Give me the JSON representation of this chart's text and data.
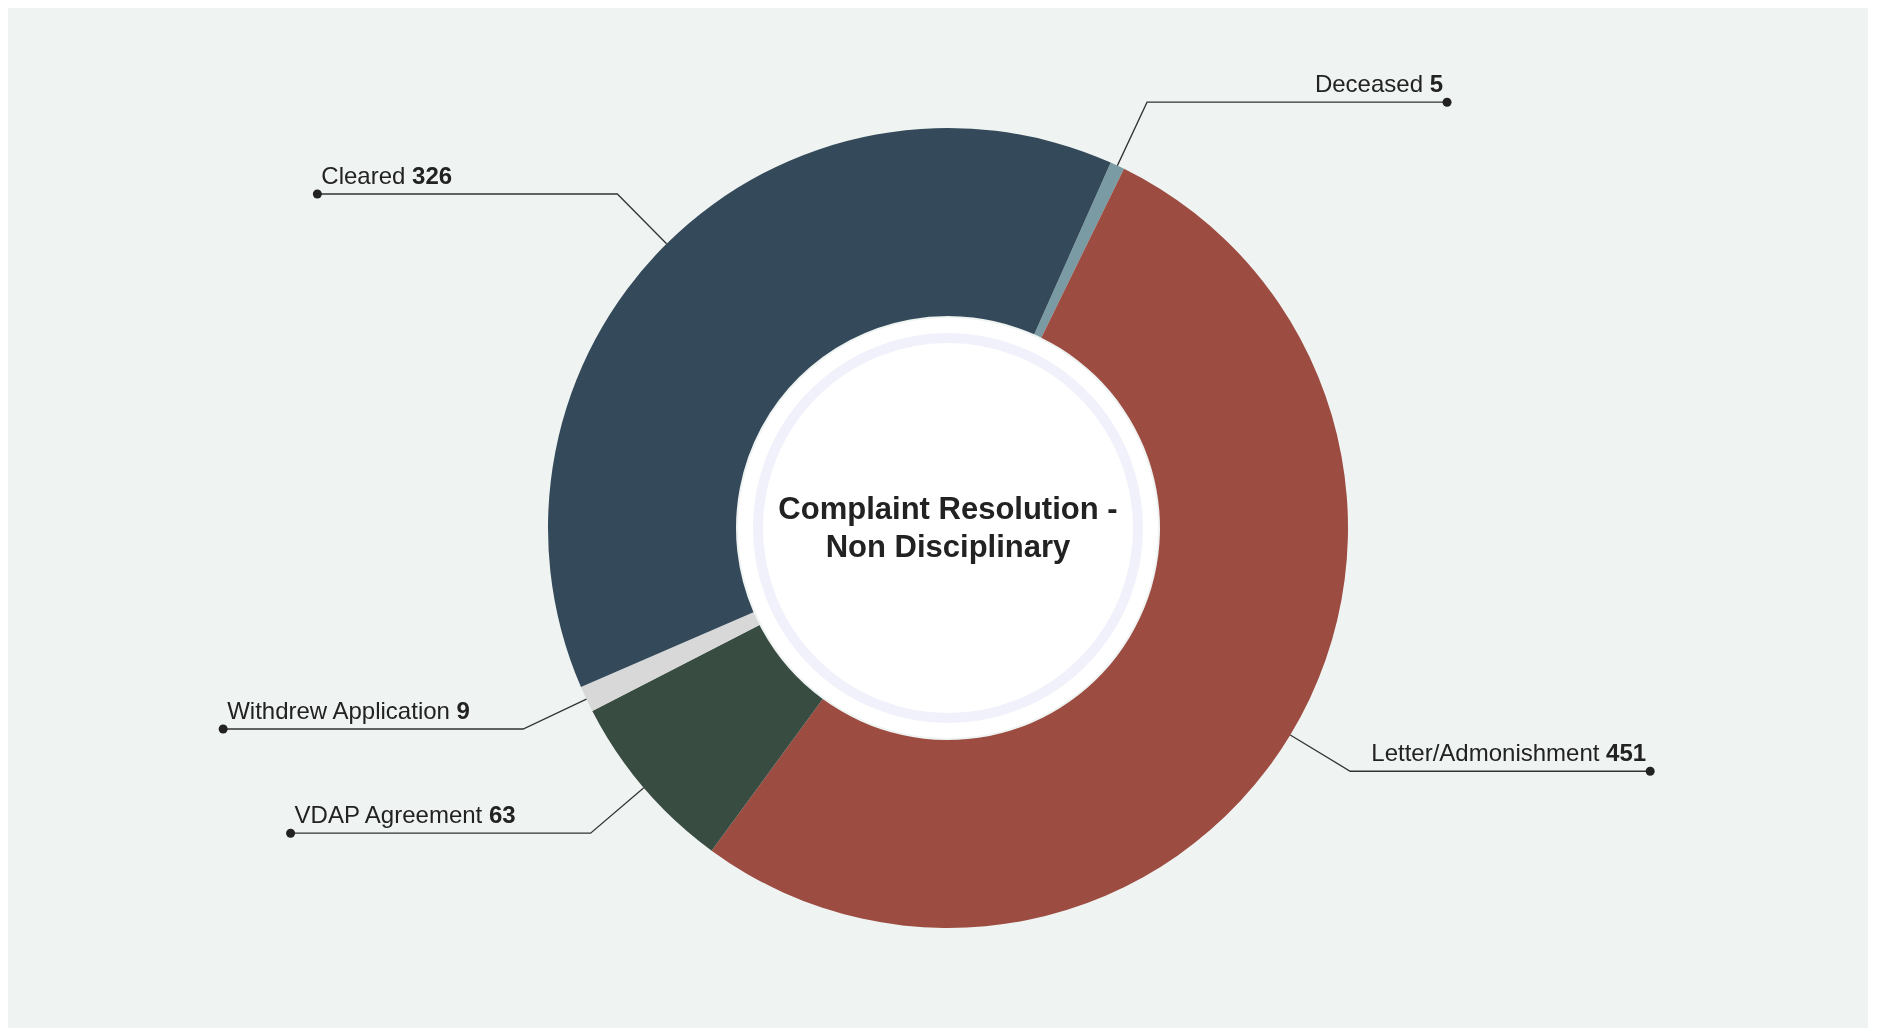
{
  "chart_data": {
    "type": "donut",
    "title": "Complaint Resolution - Non Disciplinary",
    "categories": [
      "Deceased",
      "Letter/Admonishment",
      "VDAP Agreement",
      "Withdrew Application",
      "Cleared"
    ],
    "values": [
      5,
      451,
      63,
      9,
      326
    ],
    "colors": [
      "#7a9ba3",
      "#9c4c40",
      "#384c42",
      "#d8d8d8",
      "#344a5a"
    ],
    "data_labels": true
  }
}
